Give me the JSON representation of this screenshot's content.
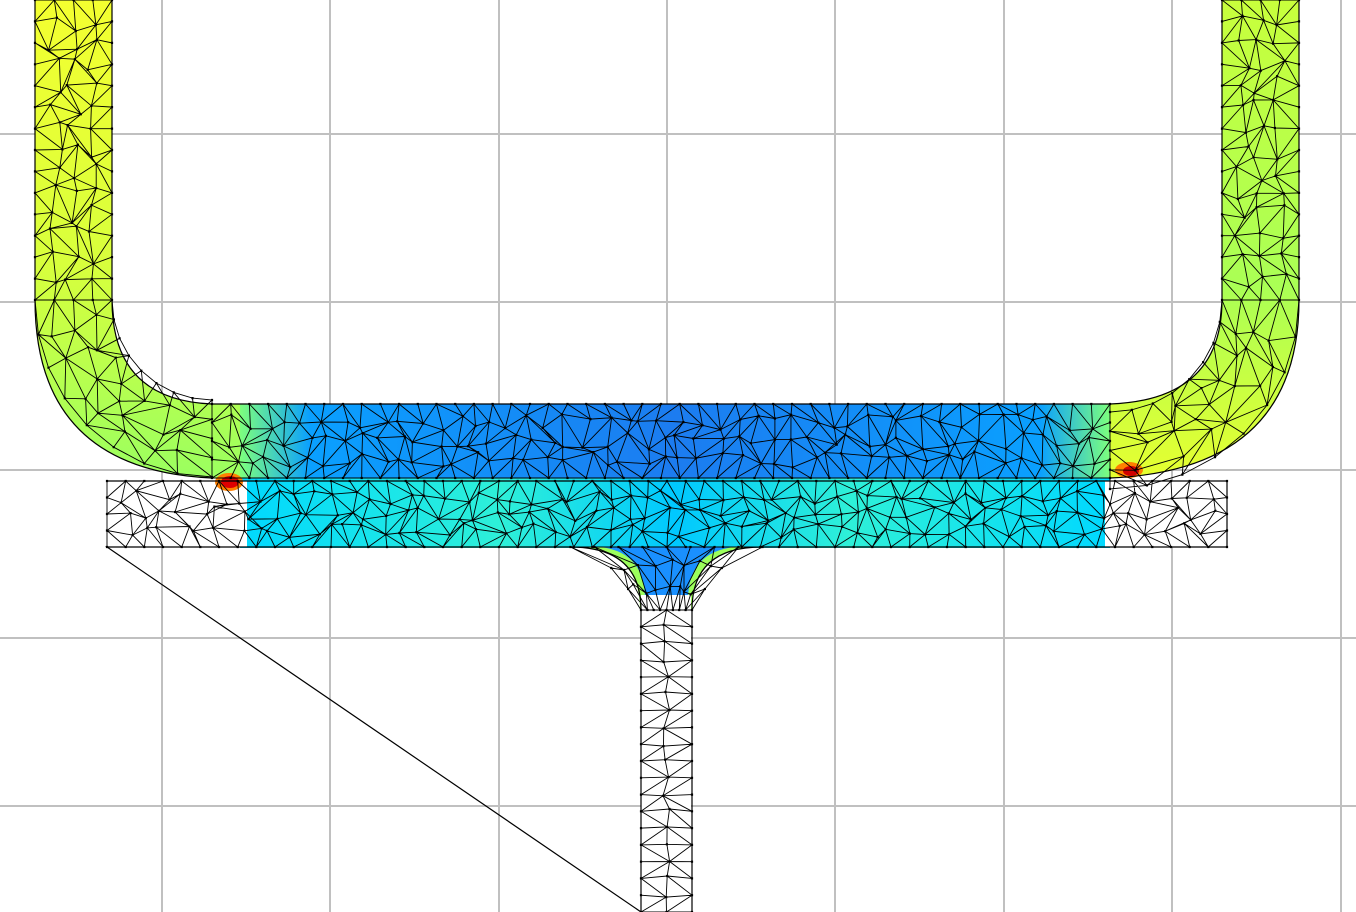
{
  "view": {
    "background": "#ffffff",
    "grid": {
      "visible": true,
      "color": "#c0c0c0"
    }
  },
  "mesh": {
    "edge_color": "#000000",
    "node_color": "#000000",
    "field_colormap": [
      "#00008b",
      "#0050ff",
      "#00c8ff",
      "#00ffd0",
      "#7dff7d",
      "#c8ff3c",
      "#ffff00",
      "#ff8000",
      "#e00000"
    ],
    "regions": [
      {
        "name": "u-shaped-channel",
        "field_level": 0.65
      },
      {
        "name": "upper-bar",
        "field_level": 0.22
      },
      {
        "name": "lower-bar",
        "field_level": 0.38
      },
      {
        "name": "left-bar-end",
        "field_level": 0.0
      },
      {
        "name": "right-bar-end",
        "field_level": 0.0
      },
      {
        "name": "stem",
        "field_level": 0.0
      },
      {
        "name": "left-stress-hotspot",
        "field_level": 1.0
      },
      {
        "name": "right-stress-hotspot",
        "field_level": 0.9
      }
    ]
  }
}
